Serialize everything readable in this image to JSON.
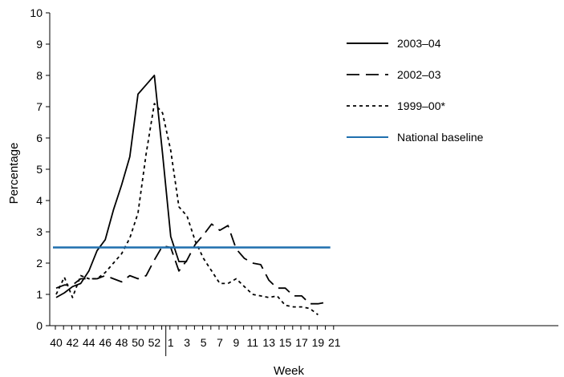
{
  "chart_data": {
    "type": "line",
    "xlabel": "Week",
    "ylabel": "Percentage",
    "ylim": [
      0,
      10
    ],
    "yticks": [
      0,
      1,
      2,
      3,
      4,
      5,
      6,
      7,
      8,
      9,
      10
    ],
    "grid": false,
    "legend_position": "top-right",
    "x_tick_labels": [
      "40",
      "42",
      "44",
      "46",
      "48",
      "50",
      "52",
      "1",
      "3",
      "5",
      "7",
      "9",
      "11",
      "13",
      "15",
      "17",
      "19",
      "21"
    ],
    "x_weeks": [
      40,
      41,
      42,
      43,
      44,
      45,
      46,
      47,
      48,
      49,
      50,
      51,
      52,
      53,
      1,
      2,
      3,
      4,
      5,
      6,
      7,
      8,
      9,
      10,
      11,
      12,
      13,
      14,
      15,
      16,
      17,
      18,
      19,
      20,
      21
    ],
    "series": [
      {
        "name": "2003–04",
        "style": "solid",
        "color": "#000000",
        "values": [
          0.9,
          1.05,
          1.25,
          1.35,
          1.75,
          2.4,
          2.75,
          3.7,
          4.5,
          5.4,
          7.4,
          7.7,
          8.0,
          5.5,
          2.85,
          2.05,
          2.05
        ]
      },
      {
        "name": "2002–03",
        "style": "dashed",
        "color": "#000000",
        "values": [
          1.2,
          1.3,
          1.3,
          1.5,
          1.5,
          1.5,
          1.6,
          1.5,
          1.4,
          1.6,
          1.5,
          1.6,
          2.1,
          2.55,
          2.5,
          1.75,
          2.1,
          2.6,
          2.9,
          3.25,
          3.05,
          3.2,
          2.45,
          2.15,
          2.0,
          1.95,
          1.45,
          1.2,
          1.2,
          0.95,
          0.95,
          0.7,
          0.7,
          0.75
        ]
      },
      {
        "name": "1999–00*",
        "style": "dotted",
        "color": "#000000",
        "values": [
          1.0,
          1.55,
          0.9,
          1.6,
          1.5,
          1.5,
          1.7,
          2.0,
          2.3,
          2.8,
          3.6,
          5.5,
          7.1,
          6.8,
          5.6,
          3.8,
          3.5,
          2.7,
          2.15,
          1.75,
          1.35,
          1.35,
          1.5,
          1.25,
          1.0,
          0.95,
          0.9,
          0.95,
          0.65,
          0.6,
          0.6,
          0.55,
          0.35
        ]
      },
      {
        "name": "National baseline",
        "style": "solid",
        "color": "#1f6fae",
        "values": [
          2.5
        ]
      }
    ]
  }
}
